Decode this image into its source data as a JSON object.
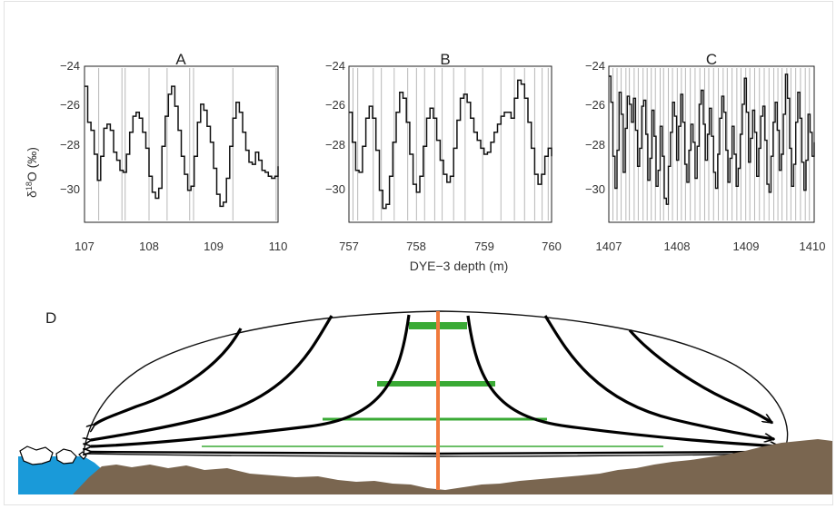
{
  "colors": {
    "ice_outline": "#111111",
    "flow_lines": "#000000",
    "annual_layers": "#3aaa35",
    "borehole": "#f07a3c",
    "bedrock": "#7a6650",
    "ocean": "#1a9ad9",
    "layer_marks": "#b8b8b8",
    "frame": "#e2e2e2"
  },
  "xlabel": "DYE−3 depth (m)",
  "ylabel_main": "δ",
  "ylabel_sup": "18",
  "ylabel_tail": "O (‰)",
  "y_ticks": [
    "−24",
    "−26",
    "−28",
    "−30"
  ],
  "panel_d_label": "D",
  "chart_data": [
    {
      "type": "line",
      "title": "A",
      "ylim": [
        -31.8,
        -24
      ],
      "y_tick_values": [
        -24,
        -26,
        -28,
        -30
      ],
      "xlim": [
        107,
        110
      ],
      "x_tick_labels": [
        "107",
        "108",
        "109",
        "110"
      ],
      "x_tick_values": [
        107,
        108,
        109,
        110
      ],
      "layer_marks": [
        107.22,
        107.58,
        107.63,
        108.0,
        108.28,
        108.63,
        108.69,
        109.3,
        109.97
      ],
      "series": [
        {
          "x": [
            107.0,
            107.05,
            107.1,
            107.15,
            107.2,
            107.25,
            107.3,
            107.35,
            107.4,
            107.45,
            107.5,
            107.55,
            107.6,
            107.65,
            107.7,
            107.75,
            107.8,
            107.85,
            107.9,
            107.95,
            108.0,
            108.05,
            108.1,
            108.15,
            108.2,
            108.25,
            108.3,
            108.35,
            108.4,
            108.45,
            108.5,
            108.55,
            108.6,
            108.65,
            108.7,
            108.75,
            108.8,
            108.85,
            108.9,
            108.95,
            109.0,
            109.05,
            109.1,
            109.15,
            109.2,
            109.25,
            109.3,
            109.35,
            109.4,
            109.45,
            109.5,
            109.55,
            109.6,
            109.65,
            109.7,
            109.75,
            109.8,
            109.85,
            109.9,
            109.95,
            110.0
          ],
          "y": [
            -25.0,
            -26.8,
            -27.2,
            -28.4,
            -29.7,
            -28.5,
            -27.1,
            -26.9,
            -27.2,
            -28.3,
            -28.7,
            -29.2,
            -29.3,
            -28.4,
            -27.3,
            -26.5,
            -26.3,
            -26.6,
            -27.3,
            -28.1,
            -29.5,
            -30.3,
            -30.6,
            -30.1,
            -28.0,
            -26.5,
            -25.4,
            -25.0,
            -26.0,
            -27.2,
            -28.5,
            -29.4,
            -30.2,
            -30.0,
            -28.5,
            -26.8,
            -25.9,
            -26.2,
            -27.0,
            -27.8,
            -29.1,
            -30.4,
            -31.0,
            -30.8,
            -29.6,
            -28.0,
            -26.6,
            -25.8,
            -26.3,
            -27.3,
            -28.2,
            -28.8,
            -28.9,
            -28.3,
            -28.7,
            -29.2,
            -29.3,
            -29.5,
            -29.6,
            -29.5,
            -29.0
          ]
        }
      ]
    },
    {
      "type": "line",
      "title": "B",
      "ylim": [
        -31.8,
        -24
      ],
      "y_tick_values": [
        -24,
        -26,
        -28,
        -30
      ],
      "xlim": [
        757,
        760
      ],
      "x_tick_labels": [
        "757",
        "758",
        "759",
        "760"
      ],
      "x_tick_values": [
        757,
        758,
        759,
        760
      ],
      "layer_marks": [
        757.06,
        757.13,
        757.36,
        757.48,
        757.67,
        757.87,
        758.0,
        758.12,
        758.27,
        758.38,
        758.55,
        758.72,
        758.98,
        759.25,
        759.45,
        759.6,
        759.75,
        759.86,
        759.95
      ],
      "series": [
        {
          "x": [
            757.0,
            757.05,
            757.1,
            757.15,
            757.2,
            757.25,
            757.3,
            757.35,
            757.4,
            757.45,
            757.5,
            757.55,
            757.6,
            757.65,
            757.7,
            757.75,
            757.8,
            757.85,
            757.9,
            757.95,
            758.0,
            758.05,
            758.1,
            758.15,
            758.2,
            758.25,
            758.3,
            758.35,
            758.4,
            758.45,
            758.5,
            758.55,
            758.6,
            758.65,
            758.7,
            758.75,
            758.8,
            758.85,
            758.9,
            758.95,
            759.0,
            759.05,
            759.1,
            759.15,
            759.2,
            759.25,
            759.3,
            759.35,
            759.4,
            759.45,
            759.5,
            759.55,
            759.6,
            759.65,
            759.7,
            759.75,
            759.8,
            759.85,
            759.9,
            759.95,
            760.0
          ],
          "y": [
            -26.3,
            -27.8,
            -29.2,
            -29.3,
            -28.0,
            -26.6,
            -26.0,
            -26.6,
            -28.2,
            -30.2,
            -31.1,
            -30.9,
            -29.5,
            -27.8,
            -26.3,
            -25.3,
            -25.6,
            -26.8,
            -28.4,
            -29.9,
            -30.3,
            -29.5,
            -28.0,
            -26.6,
            -26.1,
            -26.6,
            -27.7,
            -28.7,
            -29.4,
            -29.8,
            -29.5,
            -28.1,
            -26.7,
            -25.6,
            -25.4,
            -25.8,
            -26.6,
            -27.3,
            -27.7,
            -28.1,
            -28.4,
            -28.3,
            -27.8,
            -27.3,
            -26.9,
            -26.5,
            -26.3,
            -26.3,
            -26.6,
            -25.6,
            -24.7,
            -24.9,
            -25.6,
            -26.8,
            -28.1,
            -29.4,
            -29.9,
            -29.4,
            -28.5,
            -28.1,
            -28.5
          ]
        }
      ]
    },
    {
      "type": "line",
      "title": "C",
      "ylim": [
        -31.8,
        -24
      ],
      "y_tick_values": [
        -24,
        -26,
        -28,
        -30
      ],
      "xlim": [
        1407,
        1410
      ],
      "x_tick_labels": [
        "1407",
        "1408",
        "1409",
        "1410"
      ],
      "x_tick_values": [
        1407,
        1408,
        1409,
        1410
      ],
      "layer_marks": [
        1407.06,
        1407.12,
        1407.18,
        1407.25,
        1407.3,
        1407.37,
        1407.43,
        1407.5,
        1407.56,
        1407.62,
        1407.68,
        1407.75,
        1407.8,
        1407.87,
        1407.93,
        1408.0,
        1408.06,
        1408.12,
        1408.19,
        1408.26,
        1408.33,
        1408.4,
        1408.46,
        1408.53,
        1408.6,
        1408.67,
        1408.73,
        1408.8,
        1408.87,
        1408.93,
        1409.0,
        1409.06,
        1409.13,
        1409.2,
        1409.27,
        1409.34,
        1409.41,
        1409.47,
        1409.53,
        1409.6,
        1409.66,
        1409.73,
        1409.8,
        1409.87,
        1409.93
      ],
      "series": [
        {
          "x": [
            1407.0,
            1407.03,
            1407.06,
            1407.09,
            1407.12,
            1407.15,
            1407.18,
            1407.21,
            1407.24,
            1407.27,
            1407.3,
            1407.33,
            1407.36,
            1407.39,
            1407.42,
            1407.45,
            1407.48,
            1407.51,
            1407.54,
            1407.57,
            1407.6,
            1407.63,
            1407.66,
            1407.69,
            1407.72,
            1407.75,
            1407.78,
            1407.81,
            1407.84,
            1407.87,
            1407.9,
            1407.93,
            1407.96,
            1407.99,
            1408.02,
            1408.05,
            1408.08,
            1408.11,
            1408.14,
            1408.17,
            1408.2,
            1408.23,
            1408.26,
            1408.29,
            1408.32,
            1408.35,
            1408.38,
            1408.41,
            1408.44,
            1408.47,
            1408.5,
            1408.53,
            1408.56,
            1408.59,
            1408.62,
            1408.65,
            1408.68,
            1408.71,
            1408.74,
            1408.77,
            1408.8,
            1408.83,
            1408.86,
            1408.89,
            1408.92,
            1408.95,
            1408.98,
            1409.01,
            1409.04,
            1409.07,
            1409.1,
            1409.13,
            1409.16,
            1409.19,
            1409.22,
            1409.25,
            1409.28,
            1409.31,
            1409.34,
            1409.37,
            1409.4,
            1409.43,
            1409.46,
            1409.49,
            1409.52,
            1409.55,
            1409.58,
            1409.61,
            1409.64,
            1409.67,
            1409.7,
            1409.73,
            1409.76,
            1409.79,
            1409.82,
            1409.85,
            1409.88,
            1409.91,
            1409.94,
            1409.97,
            1410.0
          ],
          "y": [
            -24.5,
            -25.8,
            -28.5,
            -30.1,
            -28.2,
            -25.3,
            -26.4,
            -29.3,
            -27.1,
            -25.5,
            -25.9,
            -26.8,
            -25.6,
            -27.2,
            -29.0,
            -28.1,
            -26.0,
            -25.7,
            -27.4,
            -29.7,
            -28.6,
            -26.2,
            -27.5,
            -30.0,
            -29.2,
            -27.0,
            -28.5,
            -30.6,
            -30.9,
            -29.0,
            -27.3,
            -25.8,
            -26.5,
            -28.7,
            -27.0,
            -25.4,
            -26.8,
            -28.9,
            -29.8,
            -28.2,
            -26.9,
            -27.8,
            -29.6,
            -28.0,
            -25.9,
            -25.2,
            -26.9,
            -28.7,
            -27.4,
            -26.1,
            -27.5,
            -29.3,
            -30.1,
            -28.4,
            -26.6,
            -25.5,
            -26.3,
            -28.2,
            -29.8,
            -28.6,
            -27.0,
            -28.4,
            -30.0,
            -29.1,
            -27.4,
            -25.9,
            -24.6,
            -26.3,
            -28.8,
            -27.6,
            -26.2,
            -27.3,
            -29.5,
            -28.1,
            -26.5,
            -26.0,
            -27.7,
            -29.9,
            -30.3,
            -28.5,
            -26.8,
            -25.8,
            -27.2,
            -29.2,
            -28.4,
            -26.4,
            -24.4,
            -25.6,
            -28.1,
            -30.0,
            -28.9,
            -26.8,
            -25.3,
            -26.6,
            -28.8,
            -30.2,
            -28.7,
            -26.4,
            -27.3,
            -28.5,
            -27.8
          ]
        }
      ]
    }
  ]
}
